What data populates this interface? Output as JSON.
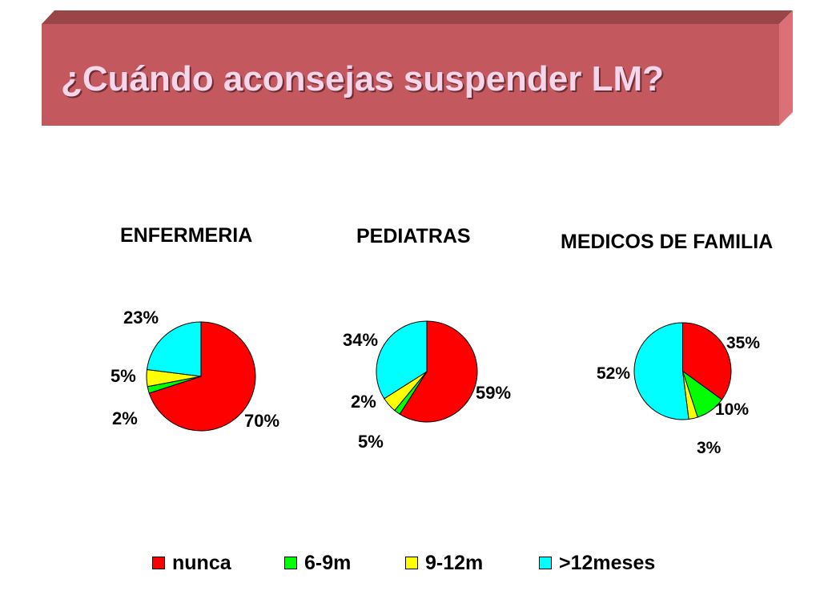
{
  "slide": {
    "title": "¿Cuándo aconsejas suspender LM?",
    "colors": {
      "banner_front": "#c3585f",
      "banner_top": "#9a4649",
      "banner_side": "#dc7077",
      "title_text": "#f6d6ea"
    }
  },
  "legend": [
    {
      "label": "nunca",
      "color": "#ff0000"
    },
    {
      "label": "6-9m",
      "color": "#00ff00"
    },
    {
      "label": "9-12m",
      "color": "#ffff00"
    },
    {
      "label": ">12meses",
      "color": "#00ffff"
    }
  ],
  "chart_data": [
    {
      "type": "pie",
      "title": "ENFERMERIA",
      "categories": [
        "nunca",
        "6-9m",
        "9-12m",
        ">12meses"
      ],
      "values": [
        70,
        2,
        5,
        23
      ],
      "labels": [
        "70%",
        "2%",
        "5%",
        "23%"
      ],
      "colors": [
        "#ff0000",
        "#00ff00",
        "#ffff00",
        "#00ffff"
      ],
      "legend": "bottom"
    },
    {
      "type": "pie",
      "title": "PEDIATRAS",
      "categories": [
        "nunca",
        "6-9m",
        "9-12m",
        ">12meses"
      ],
      "values": [
        59,
        2,
        5,
        34
      ],
      "labels": [
        "59%",
        "2%",
        "5%",
        "34%"
      ],
      "colors": [
        "#ff0000",
        "#00ff00",
        "#ffff00",
        "#00ffff"
      ],
      "legend": "bottom"
    },
    {
      "type": "pie",
      "title": "MEDICOS DE FAMILIA",
      "categories": [
        "nunca",
        "6-9m",
        "9-12m",
        ">12meses"
      ],
      "values": [
        35,
        10,
        3,
        52
      ],
      "labels": [
        "35%",
        "10%",
        "3%",
        "52%"
      ],
      "colors": [
        "#ff0000",
        "#00ff00",
        "#ffff00",
        "#00ffff"
      ],
      "legend": "bottom"
    }
  ]
}
